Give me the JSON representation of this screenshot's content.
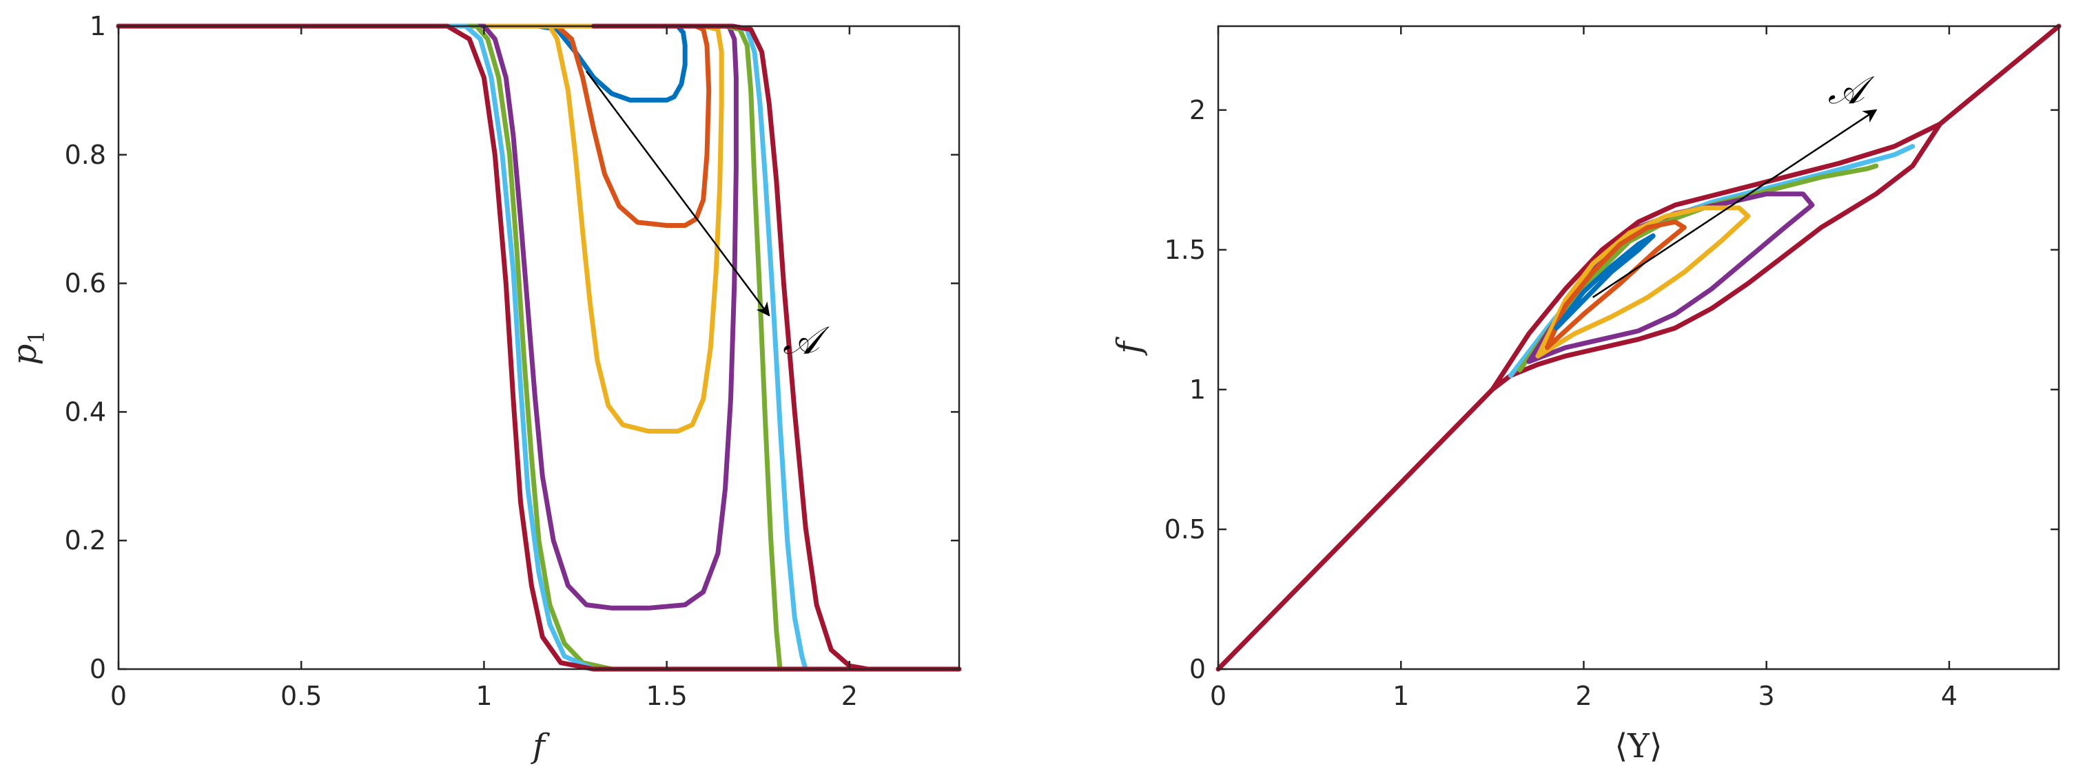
{
  "colors": {
    "series": [
      "#0072BD",
      "#D95319",
      "#EDB120",
      "#7E2F8E",
      "#77AC30",
      "#4DBEEE",
      "#A2142F"
    ],
    "axis": "#262626"
  },
  "chart_data": [
    {
      "type": "line",
      "xlabel": "f",
      "ylabel": "p",
      "ylabel_sub": "1",
      "xlim": [
        0,
        2.3
      ],
      "ylim": [
        0,
        1
      ],
      "xticks": [
        0,
        0.5,
        1,
        1.5,
        2
      ],
      "xtick_labels": [
        "0",
        "0.5",
        "1",
        "1.5",
        "2"
      ],
      "yticks": [
        0,
        0.2,
        0.4,
        0.6,
        0.8,
        1
      ],
      "ytick_labels": [
        "0",
        "0.2",
        "0.4",
        "0.6",
        "0.8",
        "1"
      ],
      "grid": false,
      "annotation": {
        "text": "𝒜",
        "arrow_from": [
          1.28,
          0.93
        ],
        "arrow_to": [
          1.78,
          0.55
        ]
      },
      "series": [
        {
          "color_index": 0,
          "points": [
            [
              0,
              1
            ],
            [
              1.15,
              1
            ],
            [
              1.2,
              0.995
            ],
            [
              1.25,
              0.96
            ],
            [
              1.3,
              0.92
            ],
            [
              1.35,
              0.895
            ],
            [
              1.4,
              0.885
            ],
            [
              1.45,
              0.885
            ],
            [
              1.5,
              0.885
            ],
            [
              1.52,
              0.89
            ],
            [
              1.54,
              0.91
            ],
            [
              1.55,
              0.94
            ],
            [
              1.55,
              0.97
            ],
            [
              1.545,
              0.99
            ],
            [
              1.53,
              1
            ],
            [
              0,
              1
            ]
          ]
        },
        {
          "color_index": 1,
          "points": [
            [
              0,
              1
            ],
            [
              1.2,
              1
            ],
            [
              1.24,
              0.98
            ],
            [
              1.27,
              0.92
            ],
            [
              1.3,
              0.84
            ],
            [
              1.33,
              0.77
            ],
            [
              1.37,
              0.72
            ],
            [
              1.42,
              0.695
            ],
            [
              1.5,
              0.69
            ],
            [
              1.55,
              0.69
            ],
            [
              1.58,
              0.7
            ],
            [
              1.6,
              0.73
            ],
            [
              1.61,
              0.8
            ],
            [
              1.615,
              0.9
            ],
            [
              1.61,
              0.97
            ],
            [
              1.6,
              0.995
            ],
            [
              1.58,
              1
            ],
            [
              0,
              1
            ]
          ]
        },
        {
          "color_index": 2,
          "points": [
            [
              0,
              1
            ],
            [
              1.18,
              1
            ],
            [
              1.2,
              0.98
            ],
            [
              1.23,
              0.9
            ],
            [
              1.25,
              0.8
            ],
            [
              1.27,
              0.68
            ],
            [
              1.29,
              0.57
            ],
            [
              1.31,
              0.48
            ],
            [
              1.34,
              0.41
            ],
            [
              1.38,
              0.38
            ],
            [
              1.45,
              0.37
            ],
            [
              1.53,
              0.37
            ],
            [
              1.57,
              0.38
            ],
            [
              1.6,
              0.42
            ],
            [
              1.62,
              0.5
            ],
            [
              1.635,
              0.62
            ],
            [
              1.645,
              0.75
            ],
            [
              1.65,
              0.88
            ],
            [
              1.65,
              0.96
            ],
            [
              1.64,
              0.995
            ],
            [
              1.6,
              1
            ],
            [
              0,
              1
            ]
          ]
        },
        {
          "color_index": 3,
          "points": [
            [
              0,
              1
            ],
            [
              1.0,
              1
            ],
            [
              1.03,
              0.98
            ],
            [
              1.06,
              0.92
            ],
            [
              1.08,
              0.83
            ],
            [
              1.1,
              0.7
            ],
            [
              1.12,
              0.56
            ],
            [
              1.14,
              0.42
            ],
            [
              1.16,
              0.3
            ],
            [
              1.19,
              0.2
            ],
            [
              1.23,
              0.13
            ],
            [
              1.28,
              0.1
            ],
            [
              1.35,
              0.095
            ],
            [
              1.45,
              0.095
            ],
            [
              1.55,
              0.1
            ],
            [
              1.6,
              0.12
            ],
            [
              1.64,
              0.18
            ],
            [
              1.66,
              0.28
            ],
            [
              1.675,
              0.42
            ],
            [
              1.685,
              0.6
            ],
            [
              1.69,
              0.78
            ],
            [
              1.69,
              0.92
            ],
            [
              1.685,
              0.98
            ],
            [
              1.67,
              1
            ],
            [
              1.3,
              1
            ]
          ]
        },
        {
          "color_index": 4,
          "points": [
            [
              0,
              1
            ],
            [
              0.98,
              1
            ],
            [
              1.01,
              0.98
            ],
            [
              1.04,
              0.92
            ],
            [
              1.07,
              0.8
            ],
            [
              1.09,
              0.65
            ],
            [
              1.11,
              0.48
            ],
            [
              1.13,
              0.33
            ],
            [
              1.15,
              0.2
            ],
            [
              1.18,
              0.1
            ],
            [
              1.22,
              0.04
            ],
            [
              1.27,
              0.01
            ],
            [
              1.35,
              0
            ],
            [
              1.81,
              0
            ],
            [
              1.8,
              0.06
            ],
            [
              1.785,
              0.2
            ],
            [
              1.77,
              0.38
            ],
            [
              1.755,
              0.58
            ],
            [
              1.74,
              0.76
            ],
            [
              1.73,
              0.9
            ],
            [
              1.72,
              0.97
            ],
            [
              1.7,
              0.995
            ],
            [
              1.66,
              1
            ],
            [
              1.3,
              1
            ]
          ]
        },
        {
          "color_index": 5,
          "points": [
            [
              0,
              1
            ],
            [
              0.95,
              1
            ],
            [
              0.99,
              0.98
            ],
            [
              1.02,
              0.92
            ],
            [
              1.05,
              0.8
            ],
            [
              1.08,
              0.62
            ],
            [
              1.1,
              0.44
            ],
            [
              1.12,
              0.28
            ],
            [
              1.15,
              0.15
            ],
            [
              1.18,
              0.07
            ],
            [
              1.22,
              0.02
            ],
            [
              1.3,
              0
            ],
            [
              1.88,
              0
            ],
            [
              1.87,
              0.02
            ],
            [
              1.85,
              0.08
            ],
            [
              1.83,
              0.2
            ],
            [
              1.81,
              0.38
            ],
            [
              1.79,
              0.58
            ],
            [
              1.77,
              0.76
            ],
            [
              1.755,
              0.88
            ],
            [
              1.74,
              0.96
            ],
            [
              1.72,
              0.995
            ],
            [
              1.68,
              1
            ],
            [
              1.3,
              1
            ]
          ]
        },
        {
          "color_index": 6,
          "points": [
            [
              0,
              1
            ],
            [
              0.9,
              1
            ],
            [
              0.96,
              0.98
            ],
            [
              1.0,
              0.92
            ],
            [
              1.03,
              0.8
            ],
            [
              1.06,
              0.6
            ],
            [
              1.08,
              0.42
            ],
            [
              1.1,
              0.26
            ],
            [
              1.13,
              0.13
            ],
            [
              1.16,
              0.05
            ],
            [
              1.21,
              0.01
            ],
            [
              1.3,
              0
            ],
            [
              2.3,
              0
            ],
            [
              2.05,
              0
            ],
            [
              2.0,
              0.005
            ],
            [
              1.95,
              0.03
            ],
            [
              1.91,
              0.1
            ],
            [
              1.88,
              0.22
            ],
            [
              1.85,
              0.4
            ],
            [
              1.82,
              0.6
            ],
            [
              1.8,
              0.76
            ],
            [
              1.78,
              0.88
            ],
            [
              1.76,
              0.96
            ],
            [
              1.73,
              0.995
            ],
            [
              1.68,
              1
            ],
            [
              1.3,
              1
            ]
          ]
        }
      ]
    },
    {
      "type": "line",
      "xlabel": "⟨Y⟩",
      "ylabel": "f",
      "xlim": [
        0,
        4.6
      ],
      "ylim": [
        0,
        2.3
      ],
      "xticks": [
        0,
        1,
        2,
        3,
        4
      ],
      "xtick_labels": [
        "0",
        "1",
        "2",
        "3",
        "4"
      ],
      "yticks": [
        0,
        0.5,
        1,
        1.5,
        2
      ],
      "ytick_labels": [
        "0",
        "0.5",
        "1",
        "1.5",
        "2"
      ],
      "grid": false,
      "annotation": {
        "text": "𝒜",
        "arrow_from": [
          2.05,
          1.33
        ],
        "arrow_to": [
          3.6,
          2.0
        ]
      },
      "series": [
        {
          "color_index": 6,
          "points": [
            [
              0,
              0
            ],
            [
              1.5,
              1.0
            ],
            [
              1.6,
              1.05
            ],
            [
              1.75,
              1.09
            ],
            [
              1.9,
              1.12
            ],
            [
              2.1,
              1.15
            ],
            [
              2.3,
              1.18
            ],
            [
              2.5,
              1.22
            ],
            [
              2.7,
              1.29
            ],
            [
              2.9,
              1.38
            ],
            [
              3.1,
              1.48
            ],
            [
              3.3,
              1.58
            ],
            [
              3.6,
              1.7
            ],
            [
              3.8,
              1.8
            ],
            [
              3.95,
              1.95
            ],
            [
              4.6,
              2.3
            ]
          ]
        },
        {
          "color_index": 6,
          "points": [
            [
              1.5,
              1.0
            ],
            [
              1.7,
              1.2
            ],
            [
              1.9,
              1.36
            ],
            [
              2.1,
              1.5
            ],
            [
              2.3,
              1.6
            ],
            [
              2.5,
              1.66
            ],
            [
              2.8,
              1.71
            ],
            [
              3.1,
              1.76
            ],
            [
              3.4,
              1.81
            ],
            [
              3.7,
              1.87
            ],
            [
              3.95,
              1.95
            ]
          ]
        },
        {
          "color_index": 5,
          "points": [
            [
              1.6,
              1.05
            ],
            [
              1.8,
              1.22
            ],
            [
              2.0,
              1.38
            ],
            [
              2.2,
              1.52
            ],
            [
              2.4,
              1.6
            ],
            [
              2.7,
              1.67
            ],
            [
              3.0,
              1.72
            ],
            [
              3.3,
              1.77
            ],
            [
              3.7,
              1.84
            ],
            [
              3.8,
              1.87
            ]
          ]
        },
        {
          "color_index": 4,
          "points": [
            [
              1.65,
              1.07
            ],
            [
              1.85,
              1.25
            ],
            [
              2.05,
              1.4
            ],
            [
              2.25,
              1.53
            ],
            [
              2.45,
              1.6
            ],
            [
              2.7,
              1.66
            ],
            [
              3.0,
              1.71
            ],
            [
              3.3,
              1.76
            ],
            [
              3.55,
              1.79
            ],
            [
              3.6,
              1.8
            ]
          ]
        },
        {
          "color_index": 3,
          "points": [
            [
              1.7,
              1.1
            ],
            [
              1.9,
              1.15
            ],
            [
              2.1,
              1.18
            ],
            [
              2.3,
              1.21
            ],
            [
              2.5,
              1.27
            ],
            [
              2.7,
              1.36
            ],
            [
              2.9,
              1.47
            ],
            [
              3.1,
              1.58
            ],
            [
              3.25,
              1.66
            ],
            [
              3.2,
              1.7
            ],
            [
              3.0,
              1.7
            ],
            [
              2.8,
              1.67
            ],
            [
              2.5,
              1.63
            ],
            [
              2.3,
              1.58
            ],
            [
              2.1,
              1.47
            ],
            [
              1.9,
              1.3
            ],
            [
              1.7,
              1.1
            ]
          ]
        },
        {
          "color_index": 2,
          "points": [
            [
              1.75,
              1.12
            ],
            [
              1.95,
              1.2
            ],
            [
              2.15,
              1.26
            ],
            [
              2.35,
              1.33
            ],
            [
              2.55,
              1.42
            ],
            [
              2.75,
              1.53
            ],
            [
              2.9,
              1.62
            ],
            [
              2.85,
              1.65
            ],
            [
              2.65,
              1.65
            ],
            [
              2.45,
              1.62
            ],
            [
              2.25,
              1.56
            ],
            [
              2.05,
              1.45
            ],
            [
              1.9,
              1.32
            ],
            [
              1.75,
              1.12
            ]
          ]
        },
        {
          "color_index": 1,
          "points": [
            [
              1.8,
              1.15
            ],
            [
              2.0,
              1.27
            ],
            [
              2.2,
              1.38
            ],
            [
              2.4,
              1.5
            ],
            [
              2.55,
              1.58
            ],
            [
              2.5,
              1.6
            ],
            [
              2.35,
              1.58
            ],
            [
              2.2,
              1.52
            ],
            [
              2.05,
              1.42
            ],
            [
              1.9,
              1.3
            ],
            [
              1.8,
              1.15
            ]
          ]
        },
        {
          "color_index": 0,
          "points": [
            [
              1.85,
              1.22
            ],
            [
              2.0,
              1.32
            ],
            [
              2.15,
              1.42
            ],
            [
              2.3,
              1.5
            ],
            [
              2.38,
              1.55
            ],
            [
              2.3,
              1.52
            ],
            [
              2.15,
              1.44
            ],
            [
              2.0,
              1.35
            ],
            [
              1.85,
              1.22
            ]
          ]
        }
      ]
    }
  ]
}
